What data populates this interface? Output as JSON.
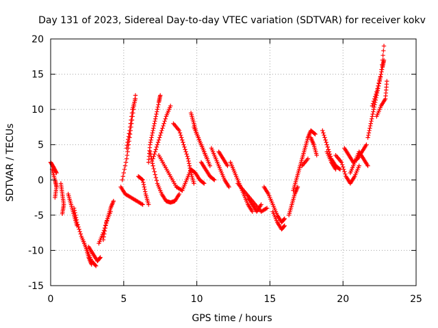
{
  "chart_data": {
    "type": "scatter",
    "title": "Day 131 of 2023, Sidereal Day-to-day VTEC variation (SDTVAR) for receiver kokv",
    "xlabel": "GPS time / hours",
    "ylabel": "SDTVAR / TECUs",
    "xlim": [
      0,
      25
    ],
    "ylim": [
      -15,
      20
    ],
    "xticks": [
      "0",
      "5",
      "10",
      "15",
      "20",
      "25"
    ],
    "yticks": [
      "-15",
      "-10",
      "-5",
      "0",
      "5",
      "10",
      "15",
      "20"
    ],
    "grid": true,
    "marker": "+",
    "color": "#ff0000",
    "tracks": [
      [
        [
          0.0,
          2.5
        ],
        [
          0.2,
          1.8
        ],
        [
          0.4,
          1.0
        ]
      ],
      [
        [
          0.1,
          1.5
        ],
        [
          0.3,
          0.0
        ],
        [
          0.4,
          -1.0
        ],
        [
          0.3,
          -2.5
        ]
      ],
      [
        [
          0.7,
          -0.5
        ],
        [
          0.8,
          -2.0
        ],
        [
          0.9,
          -3.5
        ],
        [
          0.8,
          -4.8
        ]
      ],
      [
        [
          1.2,
          -2.0
        ],
        [
          1.4,
          -3.5
        ],
        [
          1.6,
          -5.0
        ],
        [
          1.8,
          -6.5
        ]
      ],
      [
        [
          1.6,
          -4.0
        ],
        [
          1.8,
          -6.0
        ],
        [
          2.1,
          -8.0
        ],
        [
          2.4,
          -9.5
        ],
        [
          2.6,
          -11.0
        ],
        [
          2.8,
          -12.0
        ]
      ],
      [
        [
          2.2,
          -8.5
        ],
        [
          2.5,
          -10.0
        ],
        [
          2.8,
          -11.5
        ],
        [
          3.1,
          -12.2
        ]
      ],
      [
        [
          2.6,
          -9.5
        ],
        [
          2.9,
          -10.5
        ],
        [
          3.2,
          -11.5
        ],
        [
          3.4,
          -11.0
        ]
      ],
      [
        [
          3.3,
          -9.0
        ],
        [
          3.6,
          -7.5
        ],
        [
          3.9,
          -5.5
        ],
        [
          4.1,
          -4.0
        ],
        [
          4.3,
          -3.0
        ]
      ],
      [
        [
          3.6,
          -8.5
        ],
        [
          3.8,
          -6.0
        ],
        [
          4.1,
          -4.5
        ]
      ],
      [
        [
          4.8,
          -1.0
        ],
        [
          5.1,
          -2.0
        ],
        [
          5.5,
          -2.5
        ],
        [
          5.9,
          -3.0
        ],
        [
          6.3,
          -3.5
        ]
      ],
      [
        [
          4.9,
          0.0
        ],
        [
          5.2,
          3.0
        ],
        [
          5.4,
          6.0
        ],
        [
          5.6,
          9.0
        ],
        [
          5.8,
          12.0
        ]
      ],
      [
        [
          5.2,
          4.5
        ],
        [
          5.4,
          7.0
        ],
        [
          5.6,
          10.0
        ],
        [
          5.8,
          11.5
        ]
      ],
      [
        [
          6.0,
          0.5
        ],
        [
          6.3,
          0.0
        ],
        [
          6.5,
          -2.0
        ],
        [
          6.7,
          -3.5
        ]
      ],
      [
        [
          6.7,
          2.5
        ],
        [
          6.8,
          5.0
        ],
        [
          7.0,
          7.0
        ],
        [
          7.2,
          9.0
        ],
        [
          7.4,
          11.0
        ],
        [
          7.5,
          12.0
        ]
      ],
      [
        [
          6.8,
          4.0
        ],
        [
          7.0,
          2.0
        ],
        [
          7.3,
          -0.5
        ],
        [
          7.6,
          -2.0
        ],
        [
          7.9,
          -3.0
        ],
        [
          8.2,
          -3.2
        ],
        [
          8.5,
          -3.0
        ],
        [
          8.8,
          -2.0
        ]
      ],
      [
        [
          7.0,
          3.0
        ],
        [
          7.3,
          5.0
        ],
        [
          7.6,
          7.0
        ],
        [
          7.9,
          9.0
        ],
        [
          8.2,
          10.5
        ]
      ],
      [
        [
          7.4,
          3.5
        ],
        [
          7.8,
          2.0
        ],
        [
          8.2,
          0.5
        ],
        [
          8.6,
          -1.0
        ],
        [
          9.0,
          -1.5
        ]
      ],
      [
        [
          8.4,
          8.0
        ],
        [
          8.8,
          7.0
        ],
        [
          9.1,
          5.0
        ],
        [
          9.4,
          3.0
        ],
        [
          9.6,
          1.0
        ],
        [
          9.8,
          -0.5
        ]
      ],
      [
        [
          9.0,
          -1.5
        ],
        [
          9.3,
          0.0
        ],
        [
          9.6,
          1.5
        ],
        [
          9.9,
          1.0
        ],
        [
          10.2,
          0.0
        ],
        [
          10.5,
          -0.5
        ]
      ],
      [
        [
          9.6,
          9.5
        ],
        [
          9.8,
          8.0
        ],
        [
          10.0,
          6.5
        ],
        [
          10.3,
          5.0
        ],
        [
          10.6,
          3.5
        ],
        [
          10.9,
          2.0
        ]
      ],
      [
        [
          9.8,
          7.5
        ],
        [
          10.1,
          6.0
        ],
        [
          10.4,
          4.5
        ],
        [
          10.7,
          3.0
        ]
      ],
      [
        [
          10.3,
          2.5
        ],
        [
          10.6,
          1.5
        ],
        [
          10.9,
          0.5
        ],
        [
          11.2,
          0.0
        ]
      ],
      [
        [
          11.0,
          4.5
        ],
        [
          11.3,
          3.0
        ],
        [
          11.6,
          1.5
        ],
        [
          11.9,
          0.0
        ],
        [
          12.2,
          -1.0
        ]
      ],
      [
        [
          11.5,
          4.0
        ],
        [
          11.8,
          3.0
        ],
        [
          12.1,
          2.0
        ]
      ],
      [
        [
          12.3,
          2.5
        ],
        [
          12.6,
          1.0
        ],
        [
          12.9,
          -0.5
        ],
        [
          13.2,
          -2.0
        ],
        [
          13.5,
          -3.5
        ],
        [
          13.8,
          -4.5
        ]
      ],
      [
        [
          12.8,
          -0.5
        ],
        [
          13.2,
          -1.5
        ],
        [
          13.6,
          -2.5
        ],
        [
          14.0,
          -3.5
        ],
        [
          14.4,
          -4.5
        ],
        [
          14.8,
          -4.0
        ]
      ],
      [
        [
          13.5,
          -2.5
        ],
        [
          13.8,
          -3.5
        ],
        [
          14.1,
          -4.5
        ],
        [
          14.4,
          -3.5
        ]
      ],
      [
        [
          14.6,
          -1.0
        ],
        [
          14.9,
          -2.0
        ],
        [
          15.2,
          -3.5
        ],
        [
          15.5,
          -5.0
        ],
        [
          15.8,
          -6.0
        ],
        [
          16.0,
          -5.5
        ]
      ],
      [
        [
          15.2,
          -4.5
        ],
        [
          15.5,
          -6.0
        ],
        [
          15.8,
          -7.0
        ],
        [
          16.0,
          -6.5
        ]
      ],
      [
        [
          16.3,
          -5.0
        ],
        [
          16.5,
          -3.5
        ],
        [
          16.7,
          -2.0
        ],
        [
          16.9,
          -1.0
        ]
      ],
      [
        [
          16.6,
          -1.5
        ],
        [
          16.8,
          0.0
        ],
        [
          17.0,
          1.5
        ],
        [
          17.2,
          3.0
        ],
        [
          17.4,
          4.5
        ],
        [
          17.6,
          6.0
        ],
        [
          17.8,
          7.0
        ],
        [
          18.1,
          6.5
        ]
      ],
      [
        [
          17.2,
          2.0
        ],
        [
          17.6,
          3.0
        ]
      ],
      [
        [
          17.8,
          6.0
        ],
        [
          18.0,
          5.0
        ],
        [
          18.2,
          3.5
        ]
      ],
      [
        [
          18.6,
          7.0
        ],
        [
          18.9,
          5.0
        ],
        [
          19.2,
          3.0
        ],
        [
          19.5,
          2.0
        ],
        [
          19.8,
          1.5
        ]
      ],
      [
        [
          18.9,
          4.0
        ],
        [
          19.2,
          2.5
        ],
        [
          19.5,
          1.5
        ]
      ],
      [
        [
          19.5,
          3.5
        ],
        [
          19.9,
          2.5
        ],
        [
          20.2,
          0.5
        ],
        [
          20.5,
          -0.5
        ],
        [
          20.8,
          0.5
        ],
        [
          21.1,
          2.0
        ]
      ],
      [
        [
          20.1,
          4.5
        ],
        [
          20.4,
          3.5
        ],
        [
          20.7,
          2.5
        ],
        [
          21.0,
          3.0
        ],
        [
          21.3,
          4.0
        ],
        [
          21.6,
          5.0
        ]
      ],
      [
        [
          20.5,
          1.0
        ],
        [
          20.8,
          2.5
        ],
        [
          21.1,
          4.0
        ],
        [
          21.4,
          3.0
        ],
        [
          21.7,
          2.0
        ]
      ],
      [
        [
          21.7,
          6.0
        ],
        [
          21.9,
          8.0
        ],
        [
          22.1,
          10.0
        ],
        [
          22.3,
          12.0
        ],
        [
          22.5,
          14.0
        ],
        [
          22.7,
          16.0
        ],
        [
          22.8,
          17.0
        ]
      ],
      [
        [
          22.0,
          10.5
        ],
        [
          22.3,
          12.5
        ],
        [
          22.6,
          15.0
        ],
        [
          22.8,
          19.0
        ]
      ],
      [
        [
          22.3,
          9.0
        ],
        [
          22.6,
          10.5
        ],
        [
          22.9,
          11.5
        ],
        [
          23.0,
          14.0
        ]
      ]
    ]
  }
}
